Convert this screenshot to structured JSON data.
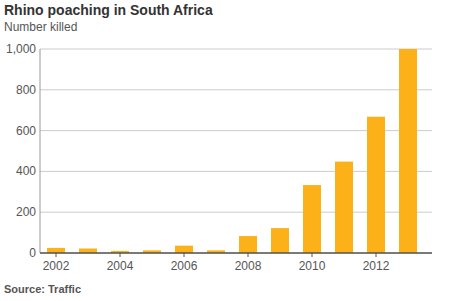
{
  "chart_data": {
    "type": "bar",
    "title": "Rhino poaching in South Africa",
    "subtitle": "Number killed",
    "source": "Source: Traffic",
    "categories": [
      "2002",
      null,
      "2004",
      null,
      "2006",
      null,
      "2008",
      null,
      "2010",
      null,
      "2012",
      null
    ],
    "values": [
      25,
      22,
      10,
      13,
      36,
      13,
      83,
      122,
      333,
      448,
      668,
      1000
    ],
    "color": "#fbb117",
    "ylim": [
      0,
      1000
    ],
    "yticks": [
      0,
      200,
      400,
      600,
      800,
      {
        "value": 1000,
        "label": "1,000"
      }
    ],
    "grid": true
  }
}
